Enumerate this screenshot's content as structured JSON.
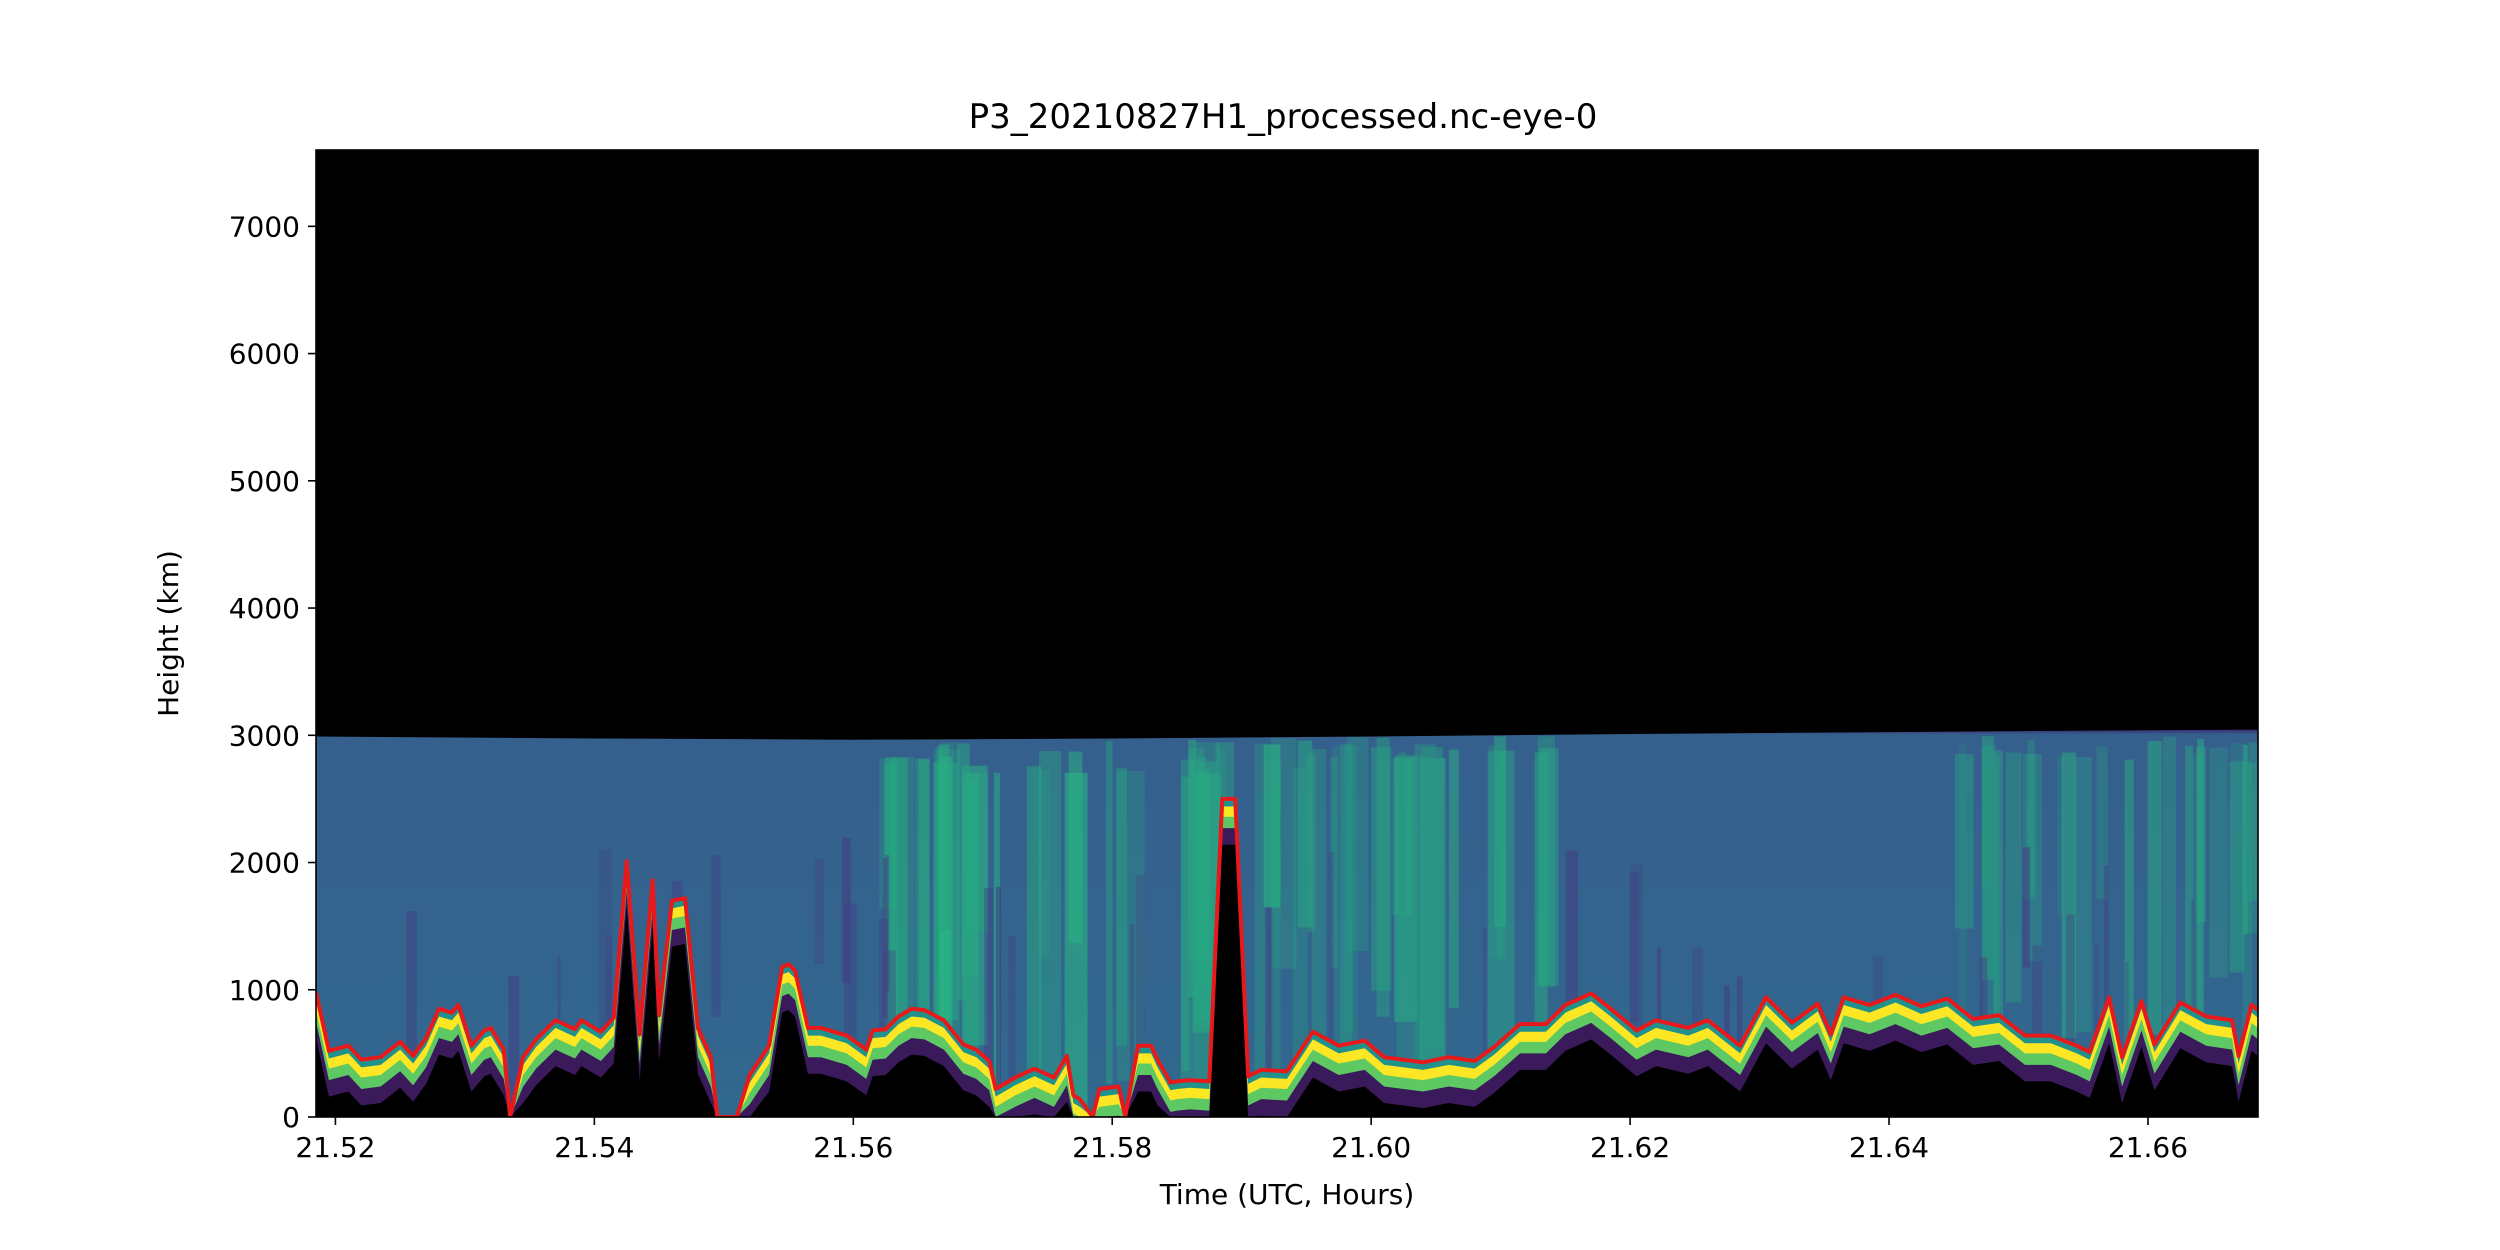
{
  "chart_data": {
    "type": "heatmap",
    "title": "P3_20210827H1_processed.nc-eye-0",
    "xlabel": "Time (UTC, Hours)",
    "ylabel": "Height (km)",
    "xlim": [
      21.5185,
      21.6685
    ],
    "ylim": [
      0,
      7600
    ],
    "xticks": [
      21.52,
      21.54,
      21.56,
      21.58,
      21.6,
      21.62,
      21.64,
      21.66
    ],
    "xtick_labels": [
      "21.52",
      "21.54",
      "21.56",
      "21.58",
      "21.60",
      "21.62",
      "21.64",
      "21.66"
    ],
    "yticks": [
      0,
      1000,
      2000,
      3000,
      4000,
      5000,
      6000,
      7000
    ],
    "ytick_labels": [
      "0",
      "1000",
      "2000",
      "3000",
      "4000",
      "5000",
      "6000",
      "7000"
    ],
    "colormap": "viridis",
    "background_color": "#000000",
    "data_top_height": [
      {
        "x": 21.5185,
        "y": 2990
      },
      {
        "x": 21.54,
        "y": 2975
      },
      {
        "x": 21.56,
        "y": 2965
      },
      {
        "x": 21.58,
        "y": 2975
      },
      {
        "x": 21.6,
        "y": 2990
      },
      {
        "x": 21.62,
        "y": 3010
      },
      {
        "x": 21.64,
        "y": 3025
      },
      {
        "x": 21.66,
        "y": 3040
      },
      {
        "x": 21.6685,
        "y": 3045
      }
    ],
    "series": [
      {
        "name": "",
        "color": "#e8191b",
        "points": [
          [
            21.5185,
            980
          ],
          [
            21.5195,
            520
          ],
          [
            21.521,
            560
          ],
          [
            21.522,
            450
          ],
          [
            21.5235,
            470
          ],
          [
            21.525,
            590
          ],
          [
            21.526,
            480
          ],
          [
            21.527,
            620
          ],
          [
            21.528,
            850
          ],
          [
            21.529,
            820
          ],
          [
            21.5295,
            880
          ],
          [
            21.5305,
            560
          ],
          [
            21.5315,
            680
          ],
          [
            21.532,
            700
          ],
          [
            21.533,
            530
          ],
          [
            21.5335,
            0
          ],
          [
            21.5345,
            470
          ],
          [
            21.5355,
            610
          ],
          [
            21.537,
            760
          ],
          [
            21.5385,
            690
          ],
          [
            21.539,
            760
          ],
          [
            21.5405,
            670
          ],
          [
            21.5415,
            780
          ],
          [
            21.5425,
            2010
          ],
          [
            21.5435,
            650
          ],
          [
            21.5445,
            1860
          ],
          [
            21.545,
            800
          ],
          [
            21.546,
            1700
          ],
          [
            21.547,
            1720
          ],
          [
            21.548,
            700
          ],
          [
            21.549,
            470
          ],
          [
            21.5495,
            0
          ],
          [
            21.551,
            0
          ],
          [
            21.552,
            330
          ],
          [
            21.5535,
            560
          ],
          [
            21.5545,
            1180
          ],
          [
            21.555,
            1200
          ],
          [
            21.5555,
            1150
          ],
          [
            21.5565,
            700
          ],
          [
            21.5575,
            700
          ],
          [
            21.5595,
            640
          ],
          [
            21.561,
            530
          ],
          [
            21.5615,
            680
          ],
          [
            21.5625,
            690
          ],
          [
            21.5635,
            790
          ],
          [
            21.5645,
            850
          ],
          [
            21.5655,
            840
          ],
          [
            21.567,
            760
          ],
          [
            21.5685,
            570
          ],
          [
            21.5695,
            530
          ],
          [
            21.5705,
            440
          ],
          [
            21.571,
            220
          ],
          [
            21.5725,
            310
          ],
          [
            21.574,
            380
          ],
          [
            21.5755,
            310
          ],
          [
            21.5765,
            480
          ],
          [
            21.577,
            170
          ],
          [
            21.5775,
            140
          ],
          [
            21.5785,
            0
          ],
          [
            21.579,
            220
          ],
          [
            21.5805,
            240
          ],
          [
            21.581,
            0
          ],
          [
            21.582,
            560
          ],
          [
            21.583,
            560
          ],
          [
            21.5835,
            450
          ],
          [
            21.5845,
            270
          ],
          [
            21.585,
            280
          ],
          [
            21.586,
            290
          ],
          [
            21.5875,
            280
          ],
          [
            21.5885,
            2500
          ],
          [
            21.5895,
            2500
          ],
          [
            21.5905,
            320
          ],
          [
            21.5915,
            370
          ],
          [
            21.5935,
            360
          ],
          [
            21.5955,
            670
          ],
          [
            21.5975,
            560
          ],
          [
            21.5995,
            600
          ],
          [
            21.601,
            470
          ],
          [
            21.604,
            430
          ],
          [
            21.606,
            470
          ],
          [
            21.608,
            440
          ],
          [
            21.6095,
            550
          ],
          [
            21.6115,
            730
          ],
          [
            21.6135,
            730
          ],
          [
            21.615,
            880
          ],
          [
            21.617,
            970
          ],
          [
            21.6185,
            850
          ],
          [
            21.6205,
            680
          ],
          [
            21.622,
            760
          ],
          [
            21.6245,
            700
          ],
          [
            21.626,
            760
          ],
          [
            21.6285,
            560
          ],
          [
            21.6305,
            940
          ],
          [
            21.6325,
            740
          ],
          [
            21.6345,
            890
          ],
          [
            21.6355,
            650
          ],
          [
            21.6365,
            940
          ],
          [
            21.6385,
            880
          ],
          [
            21.6405,
            960
          ],
          [
            21.6425,
            870
          ],
          [
            21.6445,
            930
          ],
          [
            21.6465,
            770
          ],
          [
            21.6485,
            800
          ],
          [
            21.6505,
            640
          ],
          [
            21.6525,
            640
          ],
          [
            21.6545,
            560
          ],
          [
            21.6555,
            510
          ],
          [
            21.657,
            940
          ],
          [
            21.658,
            470
          ],
          [
            21.6595,
            910
          ],
          [
            21.6605,
            570
          ],
          [
            21.6625,
            900
          ],
          [
            21.6645,
            790
          ],
          [
            21.6665,
            760
          ],
          [
            21.667,
            480
          ],
          [
            21.668,
            880
          ],
          [
            21.6685,
            840
          ]
        ]
      }
    ]
  }
}
